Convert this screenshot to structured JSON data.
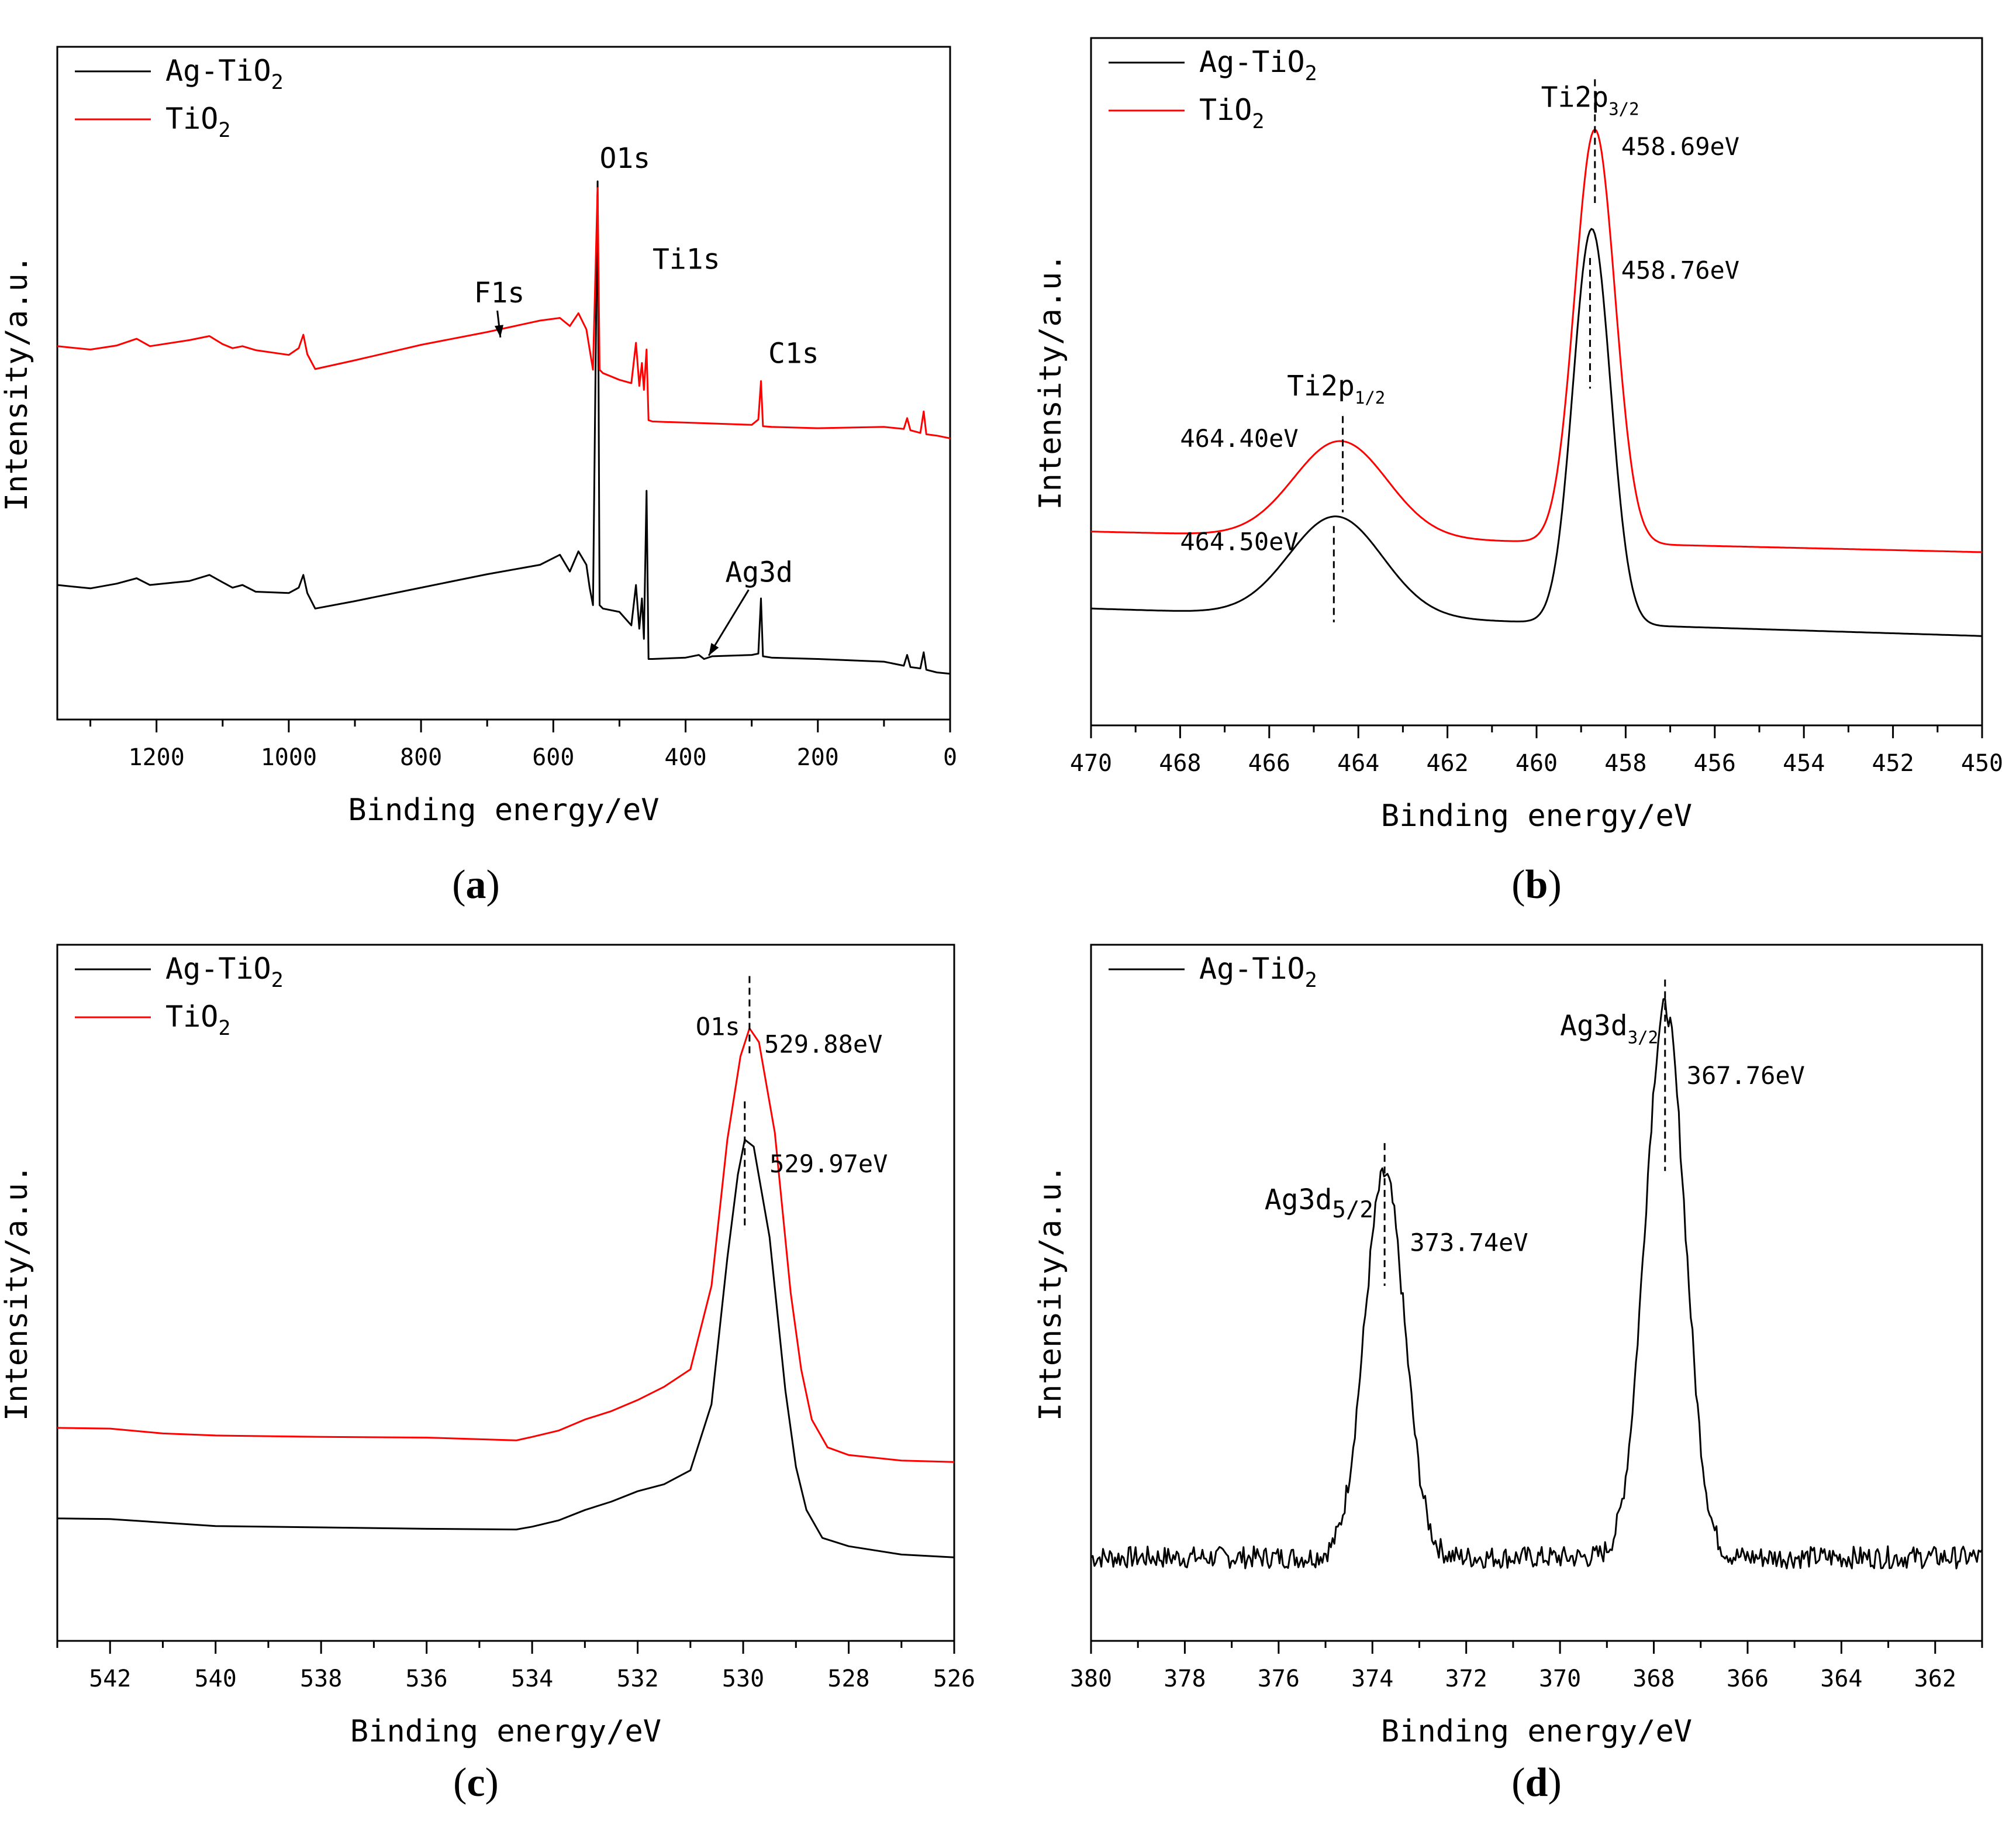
{
  "figure": {
    "colors": {
      "ag_tio2": "#000000",
      "tio2": "#ff0000"
    }
  },
  "chart_data": [
    {
      "id": "a",
      "type": "line",
      "panel_label": "(a)",
      "panel_label_parts": [
        "(",
        "a",
        ")"
      ],
      "xlabel": "Binding energy/eV",
      "ylabel": "Intensity/a.u.",
      "xlim": [
        1350,
        0
      ],
      "ylim": [
        0,
        100
      ],
      "xticks": [
        1200,
        1000,
        800,
        600,
        400,
        200,
        0
      ],
      "xtick_labels": [
        "1200",
        "1000",
        "800",
        "600",
        "400",
        "200",
        "0"
      ],
      "legend": {
        "position": "top-left",
        "entries": [
          {
            "base": "Ag-TiO",
            "sub": "2",
            "color": "#000000"
          },
          {
            "base": "TiO",
            "sub": "2",
            "color": "#ff0000"
          }
        ]
      },
      "series": [
        {
          "name": "Ag-TiO2",
          "color": "#000000",
          "points": [
            [
              1350,
              20
            ],
            [
              1300,
              19.5
            ],
            [
              1260,
              20.2
            ],
            [
              1230,
              21
            ],
            [
              1210,
              20
            ],
            [
              1150,
              20.6
            ],
            [
              1120,
              21.5
            ],
            [
              1100,
              20.4
            ],
            [
              1085,
              19.6
            ],
            [
              1070,
              20
            ],
            [
              1050,
              19
            ],
            [
              1000,
              18.8
            ],
            [
              985,
              19.6
            ],
            [
              978,
              21.5
            ],
            [
              972,
              18.8
            ],
            [
              960,
              16.5
            ],
            [
              900,
              17.6
            ],
            [
              800,
              19.6
            ],
            [
              700,
              21.6
            ],
            [
              620,
              23
            ],
            [
              590,
              24.5
            ],
            [
              575,
              22
            ],
            [
              562,
              25
            ],
            [
              550,
              23
            ],
            [
              545,
              19.6
            ],
            [
              540,
              17
            ],
            [
              533,
              80
            ],
            [
              530,
              17
            ],
            [
              525,
              16.5
            ],
            [
              500,
              16
            ],
            [
              482,
              14
            ],
            [
              475,
              20
            ],
            [
              470,
              13.5
            ],
            [
              466,
              18
            ],
            [
              463,
              12
            ],
            [
              459,
              34
            ],
            [
              456,
              9
            ],
            [
              450,
              9
            ],
            [
              400,
              9.2
            ],
            [
              380,
              9.6
            ],
            [
              372,
              9
            ],
            [
              360,
              9.4
            ],
            [
              300,
              9.6
            ],
            [
              290,
              9.8
            ],
            [
              286,
              18
            ],
            [
              283,
              9.4
            ],
            [
              270,
              9.2
            ],
            [
              200,
              9
            ],
            [
              100,
              8.6
            ],
            [
              70,
              8
            ],
            [
              65,
              9.6
            ],
            [
              60,
              7.8
            ],
            [
              45,
              7.6
            ],
            [
              40,
              10
            ],
            [
              36,
              7.4
            ],
            [
              20,
              7
            ],
            [
              0,
              6.8
            ]
          ]
        },
        {
          "name": "TiO2",
          "color": "#ff0000",
          "points": [
            [
              1350,
              55.5
            ],
            [
              1300,
              55
            ],
            [
              1260,
              55.6
            ],
            [
              1230,
              56.6
            ],
            [
              1210,
              55.5
            ],
            [
              1150,
              56.4
            ],
            [
              1120,
              57
            ],
            [
              1100,
              55.8
            ],
            [
              1085,
              55.2
            ],
            [
              1070,
              55.5
            ],
            [
              1050,
              54.9
            ],
            [
              1000,
              54.2
            ],
            [
              985,
              55.2
            ],
            [
              978,
              57.2
            ],
            [
              972,
              54.3
            ],
            [
              960,
              52.1
            ],
            [
              900,
              53.4
            ],
            [
              800,
              55.7
            ],
            [
              700,
              57.6
            ],
            [
              620,
              59.3
            ],
            [
              590,
              59.7
            ],
            [
              575,
              58.5
            ],
            [
              562,
              60.4
            ],
            [
              550,
              58
            ],
            [
              545,
              55
            ],
            [
              540,
              52
            ],
            [
              533,
              79
            ],
            [
              530,
              52
            ],
            [
              525,
              51.5
            ],
            [
              500,
              50.5
            ],
            [
              482,
              50
            ],
            [
              475,
              56
            ],
            [
              470,
              49.6
            ],
            [
              466,
              53
            ],
            [
              463,
              49
            ],
            [
              459,
              55
            ],
            [
              456,
              44.5
            ],
            [
              450,
              44.3
            ],
            [
              300,
              43.8
            ],
            [
              290,
              44.6
            ],
            [
              286,
              50.3
            ],
            [
              283,
              43.6
            ],
            [
              270,
              43.5
            ],
            [
              200,
              43.3
            ],
            [
              100,
              43.5
            ],
            [
              70,
              43.2
            ],
            [
              65,
              44.8
            ],
            [
              60,
              43
            ],
            [
              45,
              42.6
            ],
            [
              40,
              45.8
            ],
            [
              36,
              42.4
            ],
            [
              20,
              42.2
            ],
            [
              0,
              41.8
            ]
          ]
        }
      ],
      "annotations": [
        {
          "text": "O1s",
          "x": 530,
          "y": 82
        },
        {
          "text": "Ti1s",
          "x": 450,
          "y": 67
        },
        {
          "text": "F1s",
          "x": 720,
          "y": 62,
          "arrow_to": [
            680,
            56.8
          ]
        },
        {
          "text": "C1s",
          "x": 275,
          "y": 53
        },
        {
          "text": "Ag3d",
          "x": 340,
          "y": 20.5,
          "arrow_to": [
            365,
            9.5
          ]
        }
      ]
    },
    {
      "id": "b",
      "type": "line",
      "panel_label": "(b)",
      "panel_label_parts": [
        "(",
        "b",
        ")"
      ],
      "xlabel": "Binding energy/eV",
      "ylabel": "Intensity/a.u.",
      "xlim": [
        470,
        450
      ],
      "ylim": [
        0,
        100
      ],
      "xticks": [
        470,
        468,
        466,
        464,
        462,
        460,
        458,
        456,
        454,
        452,
        450
      ],
      "xtick_labels": [
        "470",
        "468",
        "466",
        "464",
        "462",
        "460",
        "458",
        "456",
        "454",
        "452",
        "450"
      ],
      "legend": {
        "position": "top-left",
        "entries": [
          {
            "base": "Ag-TiO",
            "sub": "2",
            "color": "#000000"
          },
          {
            "base": "TiO",
            "sub": "2",
            "color": "#ff0000"
          }
        ]
      },
      "series": [
        {
          "name": "Ag-TiO2",
          "color": "#000000",
          "baseline": 17,
          "slope": -0.2,
          "peaks": [
            [
              464.5,
              14.5,
              1.05
            ],
            [
              458.76,
              57.5,
              0.42
            ]
          ]
        },
        {
          "name": "TiO2",
          "color": "#ff0000",
          "baseline": 28.2,
          "slope": -0.15,
          "peaks": [
            [
              464.4,
              14,
              1.05
            ],
            [
              458.69,
              60.2,
              0.45
            ]
          ]
        }
      ],
      "annotations": [
        {
          "text": "458.69eV",
          "x": 458.1,
          "y": 83
        },
        {
          "text": "458.76eV",
          "x": 458.1,
          "y": 65
        },
        {
          "text": "464.40eV",
          "x": 468,
          "y": 40.5
        },
        {
          "text": "464.50eV",
          "x": 468,
          "y": 25.5
        }
      ],
      "peak_labels": [
        {
          "base": "Ti2p",
          "sub": "3/2",
          "x": 459.9,
          "y": 90
        },
        {
          "base": "Ti2p",
          "sub": "1/2",
          "x": 465.6,
          "y": 48
        }
      ],
      "markers": [
        {
          "x": 458.69,
          "y1": 94,
          "y2": 76
        },
        {
          "x": 458.8,
          "y1": 68,
          "y2": 49
        },
        {
          "x": 464.35,
          "y1": 45,
          "y2": 31
        },
        {
          "x": 464.55,
          "y1": 29,
          "y2": 15
        }
      ]
    },
    {
      "id": "c",
      "type": "line",
      "panel_label": "(c)",
      "panel_label_parts": [
        "(",
        "c",
        ")"
      ],
      "xlabel": "Binding energy/eV",
      "ylabel": "Intensity/a.u.",
      "xlim": [
        543,
        526
      ],
      "ylim": [
        0,
        100
      ],
      "xticks": [
        542,
        540,
        538,
        536,
        534,
        532,
        530,
        528,
        526
      ],
      "xtick_labels": [
        "542",
        "540",
        "538",
        "536",
        "534",
        "532",
        "530",
        "528",
        "526"
      ],
      "legend": {
        "position": "top-left",
        "entries": [
          {
            "base": "Ag-TiO",
            "sub": "2",
            "color": "#000000"
          },
          {
            "base": "TiO",
            "sub": "2",
            "color": "#ff0000"
          }
        ]
      },
      "series": [
        {
          "name": "Ag-TiO2",
          "color": "#000000",
          "points": [
            [
              543,
              17.6
            ],
            [
              542,
              17.5
            ],
            [
              541,
              17
            ],
            [
              540,
              16.5
            ],
            [
              538,
              16.3
            ],
            [
              536,
              16.1
            ],
            [
              534.3,
              16
            ],
            [
              534,
              16.4
            ],
            [
              533.5,
              17.3
            ],
            [
              533,
              18.8
            ],
            [
              532.5,
              20
            ],
            [
              532,
              21.5
            ],
            [
              531.5,
              22.5
            ],
            [
              531,
              24.5
            ],
            [
              530.6,
              34
            ],
            [
              530.3,
              55
            ],
            [
              530.1,
              67
            ],
            [
              529.97,
              72
            ],
            [
              529.8,
              71
            ],
            [
              529.5,
              58
            ],
            [
              529.2,
              36
            ],
            [
              529,
              25
            ],
            [
              528.8,
              18.8
            ],
            [
              528.5,
              14.8
            ],
            [
              528,
              13.6
            ],
            [
              527,
              12.4
            ],
            [
              526,
              12
            ]
          ]
        },
        {
          "name": "TiO2",
          "color": "#ff0000",
          "points": [
            [
              543,
              30.6
            ],
            [
              542,
              30.5
            ],
            [
              541,
              29.8
            ],
            [
              540,
              29.5
            ],
            [
              538,
              29.3
            ],
            [
              536,
              29.2
            ],
            [
              534.3,
              28.8
            ],
            [
              534,
              29.3
            ],
            [
              533.5,
              30.2
            ],
            [
              533,
              31.8
            ],
            [
              532.5,
              33
            ],
            [
              532,
              34.6
            ],
            [
              531.5,
              36.5
            ],
            [
              531,
              39
            ],
            [
              530.6,
              51
            ],
            [
              530.3,
              72
            ],
            [
              530.05,
              84
            ],
            [
              529.88,
              88
            ],
            [
              529.7,
              86
            ],
            [
              529.4,
              73
            ],
            [
              529.1,
              50
            ],
            [
              528.9,
              39
            ],
            [
              528.7,
              31.8
            ],
            [
              528.4,
              27.8
            ],
            [
              528,
              26.7
            ],
            [
              527,
              25.9
            ],
            [
              526,
              25.7
            ]
          ]
        }
      ],
      "annotations": [
        {
          "text": "O1s",
          "x": 530.9,
          "y": 87
        },
        {
          "text": "529.88eV",
          "x": 529.6,
          "y": 84.5
        },
        {
          "text": "529.97eV",
          "x": 529.5,
          "y": 67.3
        }
      ],
      "markers": [
        {
          "x": 529.88,
          "y1": 95.5,
          "y2": 84
        },
        {
          "x": 529.97,
          "y1": 77.5,
          "y2": 59
        }
      ]
    },
    {
      "id": "d",
      "type": "line",
      "panel_label": "(d)",
      "panel_label_parts": [
        "(",
        "d",
        ")"
      ],
      "xlabel": "Binding energy/eV",
      "ylabel": "Intensity/a.u.",
      "xlim": [
        380,
        361
      ],
      "ylim": [
        0,
        100
      ],
      "xticks": [
        380,
        378,
        376,
        374,
        372,
        370,
        368,
        366,
        364,
        362
      ],
      "xtick_labels": [
        "380",
        "378",
        "376",
        "374",
        "372",
        "370",
        "368",
        "366",
        "364",
        "362"
      ],
      "legend": {
        "position": "top-left",
        "entries": [
          {
            "base": "Ag-TiO",
            "sub": "2",
            "color": "#000000"
          }
        ]
      },
      "series": [
        {
          "name": "Ag-TiO2",
          "color": "#000000",
          "baseline": 12,
          "noise": 1.6,
          "peaks": [
            [
              373.74,
              55,
              0.43
            ],
            [
              367.76,
              79,
              0.43
            ]
          ]
        }
      ],
      "annotations": [
        {
          "text": "373.74eV",
          "x": 373.2,
          "y": 56
        },
        {
          "text": "367.76eV",
          "x": 367.3,
          "y": 80
        }
      ],
      "peak_labels": [
        {
          "base": "Ag3d",
          "sub": "5/2",
          "x": 376.3,
          "y": 62,
          "size": 56
        },
        {
          "base": "Ag3d",
          "sub": "3/2",
          "x": 370,
          "y": 87,
          "size": 42
        }
      ],
      "markers": [
        {
          "x": 373.74,
          "y1": 71.5,
          "y2": 51
        },
        {
          "x": 367.76,
          "y1": 95,
          "y2": 67.5
        }
      ]
    }
  ]
}
